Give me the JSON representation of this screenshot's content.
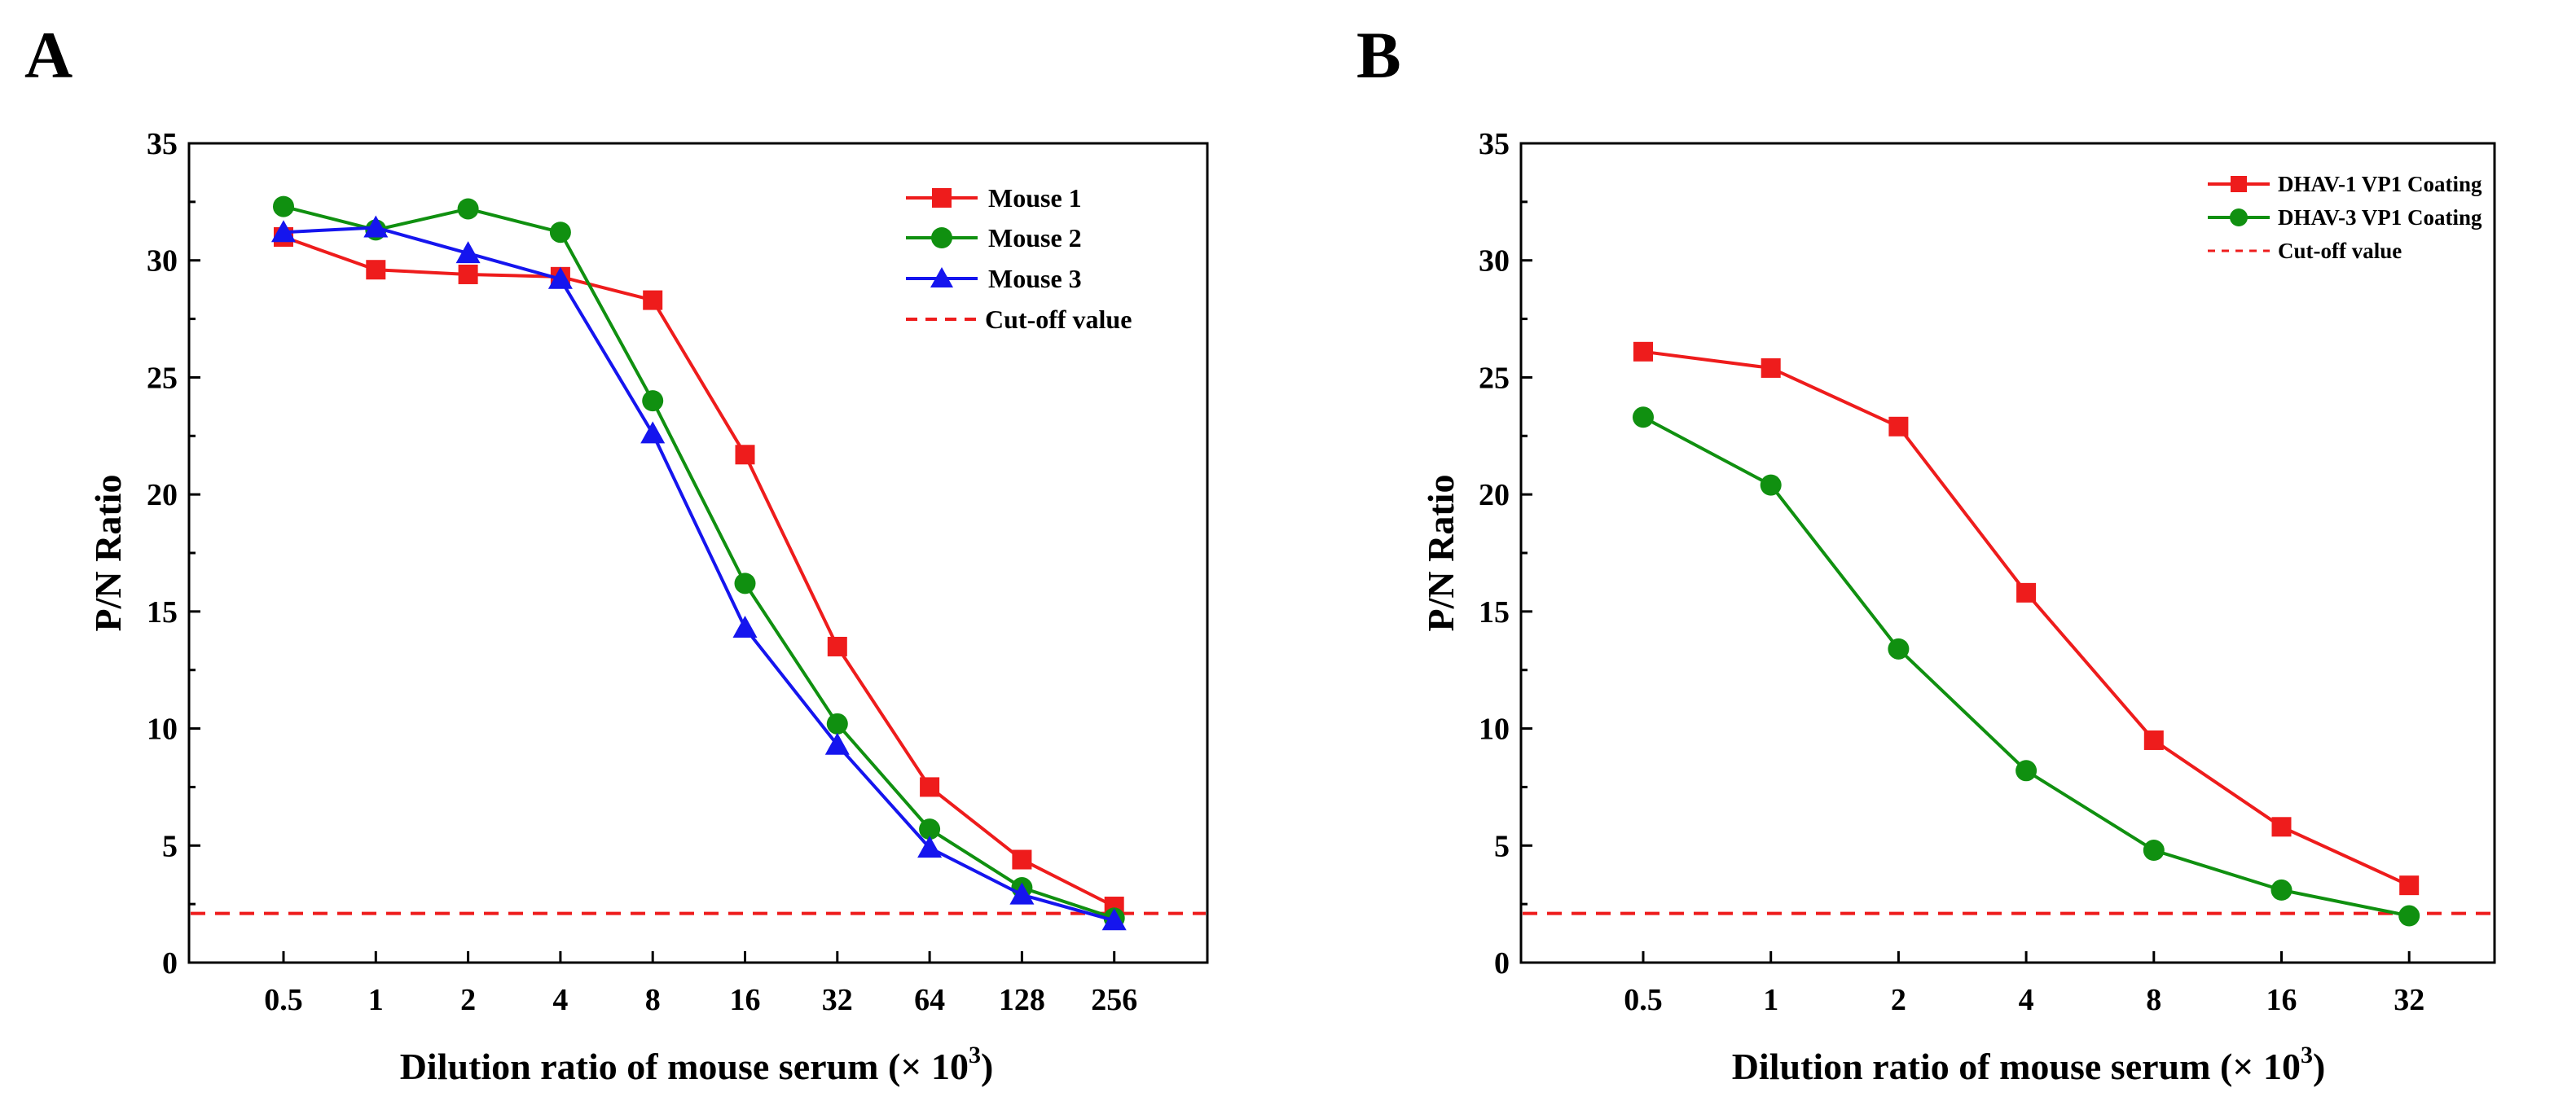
{
  "chart_data": [
    {
      "panel": "A",
      "type": "line",
      "xlabel": "Dilution ratio of mouse serum (× 10",
      "xlabel_sup": "3",
      "xlabel_close": ")",
      "ylabel": "P/N Ratio",
      "ylim": [
        0,
        35
      ],
      "yticks": [
        "0",
        "5",
        "10",
        "15",
        "20",
        "25",
        "30",
        "35"
      ],
      "categories": [
        "0.5",
        "1",
        "2",
        "4",
        "8",
        "16",
        "32",
        "64",
        "128",
        "256"
      ],
      "grid": false,
      "legend_position": "top-right",
      "series": [
        {
          "name": "Mouse 1",
          "color": "#ee1c1c",
          "marker": "square",
          "values": [
            31.0,
            29.6,
            29.4,
            29.3,
            28.3,
            21.7,
            13.5,
            7.5,
            4.4,
            2.4
          ]
        },
        {
          "name": "Mouse 2",
          "color": "#109010",
          "marker": "circle",
          "values": [
            32.3,
            31.3,
            32.2,
            31.2,
            24.0,
            16.2,
            10.2,
            5.7,
            3.2,
            1.9
          ]
        },
        {
          "name": "Mouse 3",
          "color": "#1515ee",
          "marker": "triangle",
          "values": [
            31.2,
            31.4,
            30.3,
            29.2,
            22.6,
            14.3,
            9.3,
            4.9,
            2.9,
            1.8
          ]
        }
      ],
      "cutoff": {
        "name": "Cut-off value",
        "value": 2.1,
        "color": "#ee1c1c"
      }
    },
    {
      "panel": "B",
      "type": "line",
      "xlabel": "Dilution ratio of mouse serum (× 10",
      "xlabel_sup": "3",
      "xlabel_close": ")",
      "ylabel": "P/N Ratio",
      "ylim": [
        0,
        35
      ],
      "yticks": [
        "0",
        "5",
        "10",
        "15",
        "20",
        "25",
        "30",
        "35"
      ],
      "categories": [
        "0.5",
        "1",
        "2",
        "4",
        "8",
        "16",
        "32"
      ],
      "grid": false,
      "legend_position": "top-right",
      "series": [
        {
          "name": "DHAV-1 VP1 Coating",
          "color": "#ee1c1c",
          "marker": "square",
          "values": [
            26.1,
            25.4,
            22.9,
            15.8,
            9.5,
            5.8,
            3.3
          ]
        },
        {
          "name": "DHAV-3 VP1 Coating",
          "color": "#109010",
          "marker": "circle",
          "values": [
            23.3,
            20.4,
            13.4,
            8.2,
            4.8,
            3.1,
            2.0
          ]
        }
      ],
      "cutoff": {
        "name": "Cut-off value",
        "value": 2.1,
        "color": "#ee1c1c"
      }
    }
  ]
}
